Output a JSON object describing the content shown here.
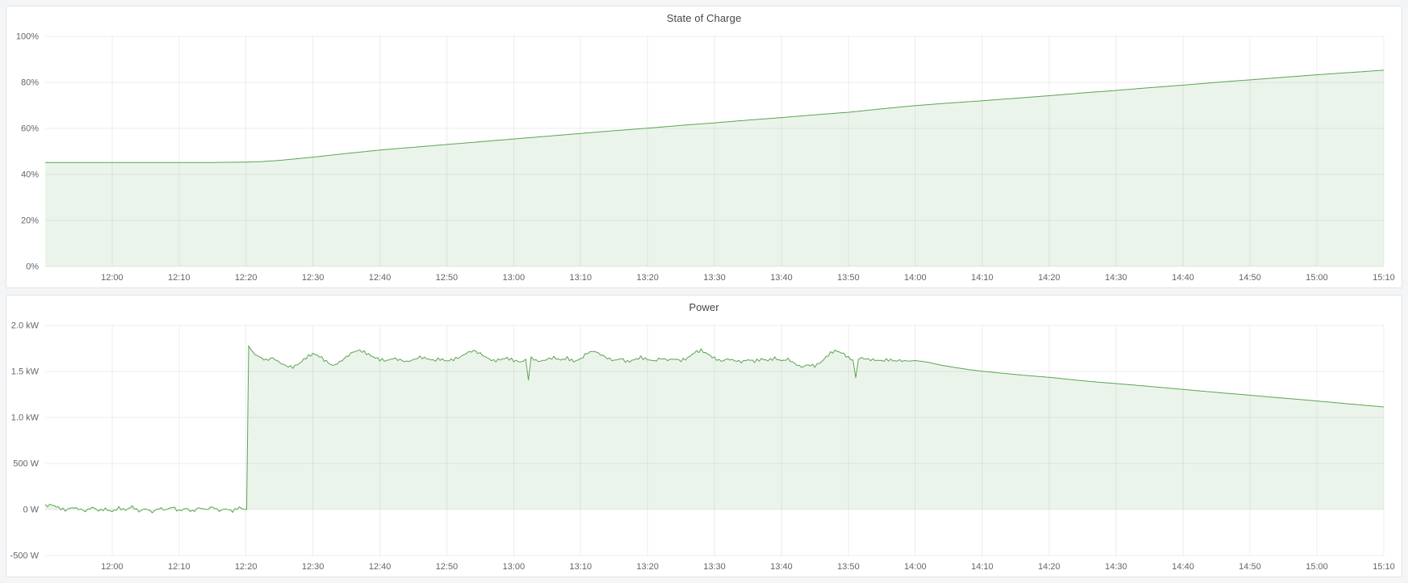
{
  "style": {
    "page_bg": "#F4F5F6",
    "panel_bg": "#FFFFFF",
    "panel_border": "#E1E3E4",
    "grid_color": "rgba(0,0,0,0.07)",
    "tick_color": "#61656A",
    "title_color": "#42464C",
    "series_green": "#5CA453"
  },
  "chart_data": [
    {
      "type": "area",
      "title": "State of Charge",
      "unit": "percent",
      "grid": true,
      "legend": false,
      "x_start_min": 710,
      "x_end_min": 910,
      "x_ticks": [
        [
          720,
          "12:00"
        ],
        [
          730,
          "12:10"
        ],
        [
          740,
          "12:20"
        ],
        [
          750,
          "12:30"
        ],
        [
          760,
          "12:40"
        ],
        [
          770,
          "12:50"
        ],
        [
          780,
          "13:00"
        ],
        [
          790,
          "13:10"
        ],
        [
          800,
          "13:20"
        ],
        [
          810,
          "13:30"
        ],
        [
          820,
          "13:40"
        ],
        [
          830,
          "13:50"
        ],
        [
          840,
          "14:00"
        ],
        [
          850,
          "14:10"
        ],
        [
          860,
          "14:20"
        ],
        [
          870,
          "14:30"
        ],
        [
          880,
          "14:40"
        ],
        [
          890,
          "14:50"
        ],
        [
          900,
          "15:00"
        ],
        [
          910,
          "15:10"
        ]
      ],
      "y_min": 0,
      "y_max": 100,
      "y_ticks": [
        [
          0,
          "0%"
        ],
        [
          20,
          "20%"
        ],
        [
          40,
          "40%"
        ],
        [
          60,
          "60%"
        ],
        [
          80,
          "80%"
        ],
        [
          100,
          "100%"
        ]
      ],
      "series": [
        {
          "name": "State of Charge",
          "color": "#5CA453",
          "fill_opacity": 0.12,
          "fill_to": 0,
          "noise": [],
          "points": [
            [
              710,
              45.2
            ],
            [
              715,
              45.2
            ],
            [
              720,
              45.2
            ],
            [
              725,
              45.2
            ],
            [
              730,
              45.2
            ],
            [
              735,
              45.2
            ],
            [
              739,
              45.3
            ],
            [
              742,
              45.5
            ],
            [
              745,
              46.1
            ],
            [
              750,
              47.5
            ],
            [
              755,
              49.1
            ],
            [
              760,
              50.6
            ],
            [
              765,
              51.8
            ],
            [
              770,
              53.0
            ],
            [
              775,
              54.2
            ],
            [
              780,
              55.4
            ],
            [
              785,
              56.6
            ],
            [
              790,
              57.8
            ],
            [
              795,
              59.0
            ],
            [
              800,
              60.1
            ],
            [
              805,
              61.3
            ],
            [
              810,
              62.4
            ],
            [
              815,
              63.6
            ],
            [
              820,
              64.7
            ],
            [
              825,
              65.9
            ],
            [
              830,
              67.0
            ],
            [
              835,
              68.5
            ],
            [
              840,
              69.9
            ],
            [
              845,
              71.0
            ],
            [
              850,
              72.0
            ],
            [
              855,
              73.1
            ],
            [
              860,
              74.2
            ],
            [
              865,
              75.4
            ],
            [
              870,
              76.5
            ],
            [
              875,
              77.7
            ],
            [
              880,
              78.8
            ],
            [
              885,
              80.0
            ],
            [
              890,
              81.1
            ],
            [
              895,
              82.2
            ],
            [
              900,
              83.3
            ],
            [
              905,
              84.3
            ],
            [
              910,
              85.3
            ]
          ]
        }
      ]
    },
    {
      "type": "area",
      "title": "Power",
      "unit": "watts",
      "grid": true,
      "legend": false,
      "x_start_min": 710,
      "x_end_min": 910,
      "x_ticks": [
        [
          720,
          "12:00"
        ],
        [
          730,
          "12:10"
        ],
        [
          740,
          "12:20"
        ],
        [
          750,
          "12:30"
        ],
        [
          760,
          "12:40"
        ],
        [
          770,
          "12:50"
        ],
        [
          780,
          "13:00"
        ],
        [
          790,
          "13:10"
        ],
        [
          800,
          "13:20"
        ],
        [
          810,
          "13:30"
        ],
        [
          820,
          "13:40"
        ],
        [
          830,
          "13:50"
        ],
        [
          840,
          "14:00"
        ],
        [
          850,
          "14:10"
        ],
        [
          860,
          "14:20"
        ],
        [
          870,
          "14:30"
        ],
        [
          880,
          "14:40"
        ],
        [
          890,
          "14:50"
        ],
        [
          900,
          "15:00"
        ],
        [
          910,
          "15:10"
        ]
      ],
      "y_min": -500,
      "y_max": 2000,
      "y_ticks": [
        [
          -500,
          "-500 W"
        ],
        [
          0,
          "0 W"
        ],
        [
          500,
          "500 W"
        ],
        [
          1000,
          "1.0 kW"
        ],
        [
          1500,
          "1.5 kW"
        ],
        [
          2000,
          "2.0 kW"
        ]
      ],
      "series": [
        {
          "name": "Power",
          "color": "#5CA453",
          "fill_opacity": 0.12,
          "fill_to": 0,
          "noise": [
            {
              "from": 710,
              "to": 739.5,
              "amp": 16
            },
            {
              "from": 740.8,
              "to": 838,
              "amp": 18
            }
          ],
          "points": [
            [
              710,
              40
            ],
            [
              711,
              52
            ],
            [
              712,
              20
            ],
            [
              713,
              -8
            ],
            [
              714,
              22
            ],
            [
              715,
              8
            ],
            [
              716,
              -18
            ],
            [
              717,
              26
            ],
            [
              718,
              -12
            ],
            [
              719,
              6
            ],
            [
              720,
              -24
            ],
            [
              721,
              18
            ],
            [
              722,
              -6
            ],
            [
              723,
              34
            ],
            [
              724,
              -20
            ],
            [
              725,
              10
            ],
            [
              726,
              -30
            ],
            [
              727,
              14
            ],
            [
              728,
              -4
            ],
            [
              729,
              28
            ],
            [
              730,
              -16
            ],
            [
              731,
              12
            ],
            [
              732,
              -22
            ],
            [
              733,
              20
            ],
            [
              734,
              -2
            ],
            [
              735,
              30
            ],
            [
              736,
              -14
            ],
            [
              737,
              8
            ],
            [
              738,
              -18
            ],
            [
              739,
              24
            ],
            [
              739.7,
              2
            ],
            [
              740.1,
              0
            ],
            [
              740.4,
              1778
            ],
            [
              741,
              1702
            ],
            [
              742,
              1658
            ],
            [
              743,
              1622
            ],
            [
              744,
              1648
            ],
            [
              745,
              1598
            ],
            [
              746,
              1560
            ],
            [
              747,
              1546
            ],
            [
              748,
              1588
            ],
            [
              749,
              1652
            ],
            [
              750,
              1692
            ],
            [
              751,
              1664
            ],
            [
              752,
              1608
            ],
            [
              753,
              1562
            ],
            [
              754,
              1602
            ],
            [
              755,
              1658
            ],
            [
              756,
              1712
            ],
            [
              757,
              1730
            ],
            [
              758,
              1698
            ],
            [
              759,
              1658
            ],
            [
              760,
              1630
            ],
            [
              761,
              1616
            ],
            [
              762,
              1642
            ],
            [
              763,
              1626
            ],
            [
              764,
              1606
            ],
            [
              765,
              1626
            ],
            [
              766,
              1656
            ],
            [
              767,
              1640
            ],
            [
              768,
              1620
            ],
            [
              769,
              1636
            ],
            [
              770,
              1614
            ],
            [
              771,
              1632
            ],
            [
              772,
              1656
            ],
            [
              773,
              1702
            ],
            [
              774,
              1726
            ],
            [
              775,
              1694
            ],
            [
              776,
              1648
            ],
            [
              777,
              1614
            ],
            [
              778,
              1630
            ],
            [
              779,
              1646
            ],
            [
              780,
              1620
            ],
            [
              781,
              1604
            ],
            [
              781.8,
              1624
            ],
            [
              782.2,
              1420
            ],
            [
              782.6,
              1648
            ],
            [
              783,
              1626
            ],
            [
              784,
              1610
            ],
            [
              785,
              1632
            ],
            [
              786,
              1652
            ],
            [
              787,
              1624
            ],
            [
              788,
              1646
            ],
            [
              789,
              1608
            ],
            [
              790,
              1636
            ],
            [
              791,
              1702
            ],
            [
              792,
              1722
            ],
            [
              793,
              1684
            ],
            [
              794,
              1644
            ],
            [
              795,
              1618
            ],
            [
              796,
              1640
            ],
            [
              797,
              1604
            ],
            [
              798,
              1626
            ],
            [
              799,
              1652
            ],
            [
              800,
              1630
            ],
            [
              801,
              1614
            ],
            [
              802,
              1642
            ],
            [
              803,
              1624
            ],
            [
              804,
              1636
            ],
            [
              805,
              1618
            ],
            [
              806,
              1646
            ],
            [
              807,
              1706
            ],
            [
              808,
              1730
            ],
            [
              809,
              1688
            ],
            [
              810,
              1644
            ],
            [
              811,
              1612
            ],
            [
              812,
              1636
            ],
            [
              813,
              1618
            ],
            [
              814,
              1604
            ],
            [
              815,
              1628
            ],
            [
              816,
              1610
            ],
            [
              817,
              1634
            ],
            [
              818,
              1620
            ],
            [
              819,
              1644
            ],
            [
              820,
              1616
            ],
            [
              821,
              1634
            ],
            [
              822,
              1584
            ],
            [
              823,
              1548
            ],
            [
              824,
              1572
            ],
            [
              825,
              1560
            ],
            [
              826,
              1606
            ],
            [
              827,
              1682
            ],
            [
              828,
              1726
            ],
            [
              829,
              1704
            ],
            [
              830,
              1652
            ],
            [
              830.7,
              1618
            ],
            [
              831.1,
              1448
            ],
            [
              831.5,
              1612
            ],
            [
              832,
              1646
            ],
            [
              833,
              1630
            ],
            [
              834,
              1624
            ],
            [
              835,
              1616
            ],
            [
              836,
              1628
            ],
            [
              837,
              1614
            ],
            [
              838,
              1622
            ],
            [
              839,
              1612
            ],
            [
              840,
              1618
            ],
            [
              841,
              1610
            ],
            [
              842,
              1598
            ],
            [
              844,
              1566
            ],
            [
              846,
              1542
            ],
            [
              848,
              1520
            ],
            [
              850,
              1502
            ],
            [
              852,
              1488
            ],
            [
              854,
              1474
            ],
            [
              856,
              1460
            ],
            [
              858,
              1448
            ],
            [
              860,
              1436
            ],
            [
              863,
              1414
            ],
            [
              866,
              1392
            ],
            [
              870,
              1368
            ],
            [
              874,
              1344
            ],
            [
              878,
              1318
            ],
            [
              882,
              1292
            ],
            [
              886,
              1266
            ],
            [
              890,
              1242
            ],
            [
              894,
              1216
            ],
            [
              898,
              1192
            ],
            [
              902,
              1166
            ],
            [
              906,
              1140
            ],
            [
              910,
              1114
            ]
          ]
        }
      ]
    }
  ]
}
